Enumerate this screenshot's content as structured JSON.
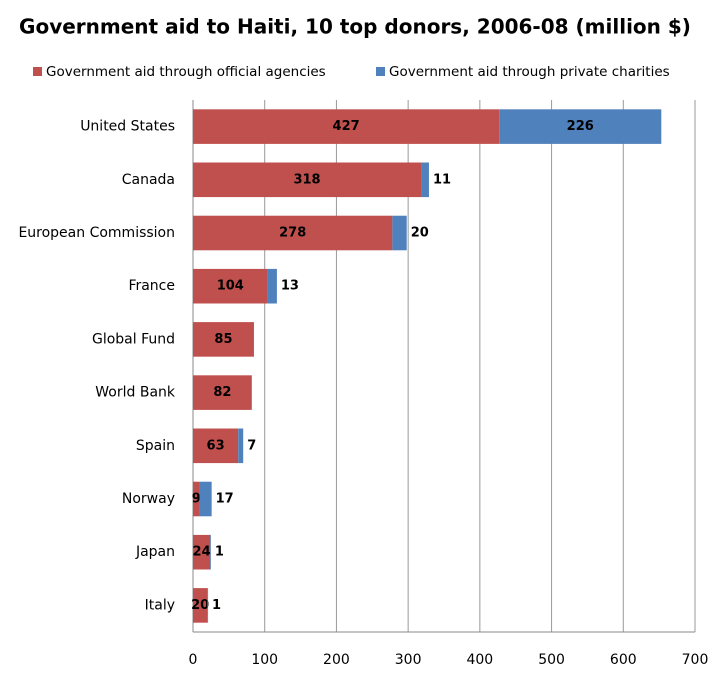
{
  "chart_data": {
    "type": "stacked-barh",
    "title": "Government aid to Haiti, 10 top donors, 2006-08 (million $)",
    "categories": [
      "United States",
      "Canada",
      "European Commission",
      "France",
      "Global Fund",
      "World Bank",
      "Spain",
      "Norway",
      "Japan",
      "Italy"
    ],
    "series": [
      {
        "name": "Government aid through official agencies",
        "color": "#c0504d",
        "values": [
          427,
          318,
          278,
          104,
          85,
          82,
          63,
          9,
          24,
          20
        ]
      },
      {
        "name": "Government aid through private charities",
        "color": "#4f81bd",
        "values": [
          226,
          11,
          20,
          13,
          null,
          null,
          7,
          17,
          1,
          1
        ]
      }
    ],
    "xlim": [
      0,
      700
    ],
    "xticks": [
      0,
      100,
      200,
      300,
      400,
      500,
      600,
      700
    ],
    "grid": true
  }
}
